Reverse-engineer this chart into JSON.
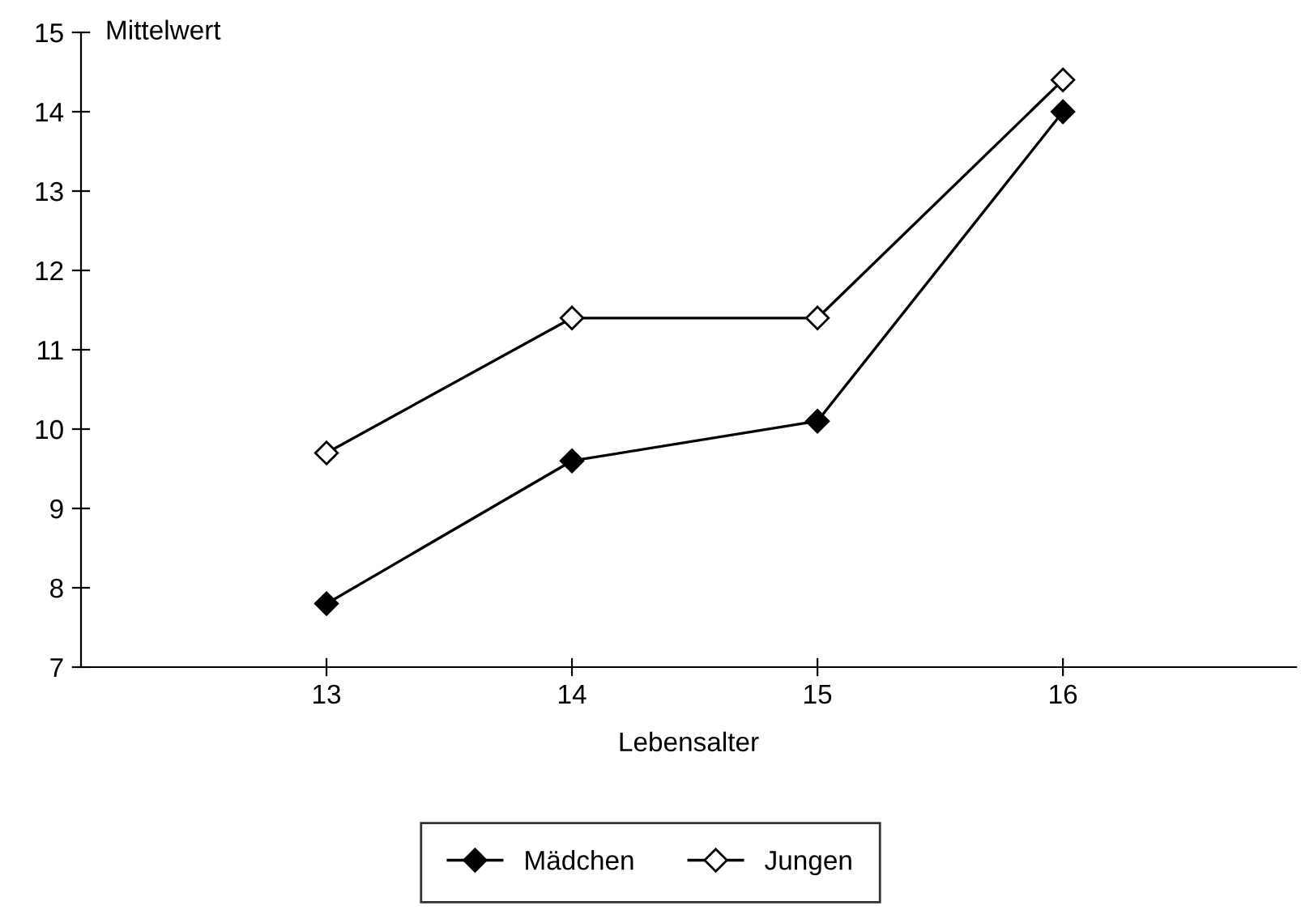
{
  "chart_data": {
    "type": "line",
    "xlabel": "Lebensalter",
    "ylabel": "Mittelwert",
    "x": [
      13,
      14,
      15,
      16
    ],
    "series": [
      {
        "name": "Mädchen",
        "color": "#000000",
        "values": [
          7.8,
          9.6,
          10.1,
          14.0
        ]
      },
      {
        "name": "Jungen",
        "color": "#000000",
        "values": [
          9.7,
          11.4,
          11.4,
          14.4
        ]
      }
    ],
    "xlim": [
      12,
      16.95
    ],
    "xticks": [
      13,
      14,
      15,
      16
    ],
    "ylim": [
      7,
      15
    ],
    "yticks": [
      7,
      8,
      9,
      10,
      11,
      12,
      13,
      14,
      15
    ],
    "marker": "diamond",
    "line_style": "solid",
    "grid": false,
    "legend": "bottom"
  }
}
